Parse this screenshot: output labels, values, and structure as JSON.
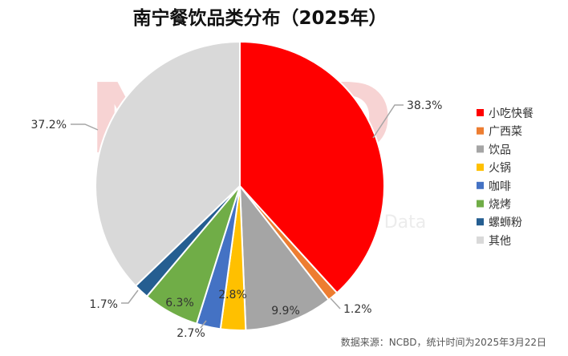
{
  "chart_data": {
    "type": "pie",
    "title": "南宁餐饮品类分布（2025年）",
    "slices": [
      {
        "name": "小吃快餐",
        "value": 38.3,
        "label": "38.3%",
        "color": "#ff0000"
      },
      {
        "name": "广西菜",
        "value": 1.2,
        "label": "1.2%",
        "color": "#ed7d31"
      },
      {
        "name": "饮品",
        "value": 9.9,
        "label": "9.9%",
        "color": "#a5a5a5"
      },
      {
        "name": "火锅",
        "value": 2.8,
        "label": "2.8%",
        "color": "#ffc000"
      },
      {
        "name": "咖啡",
        "value": 2.7,
        "label": "2.7%",
        "color": "#4472c4"
      },
      {
        "name": "烧烤",
        "value": 6.3,
        "label": "6.3%",
        "color": "#70ad47"
      },
      {
        "name": "螺蛳粉",
        "value": 1.7,
        "label": "1.7%",
        "color": "#255e91"
      },
      {
        "name": "其他",
        "value": 37.2,
        "label": "37.2%",
        "color": "#d9d9d9"
      }
    ],
    "legend_position": "right"
  },
  "watermark": {
    "text": "NCBD",
    "sub": "Data"
  },
  "source_note": "数据来源：NCBD，统计时间为2025年3月22日"
}
